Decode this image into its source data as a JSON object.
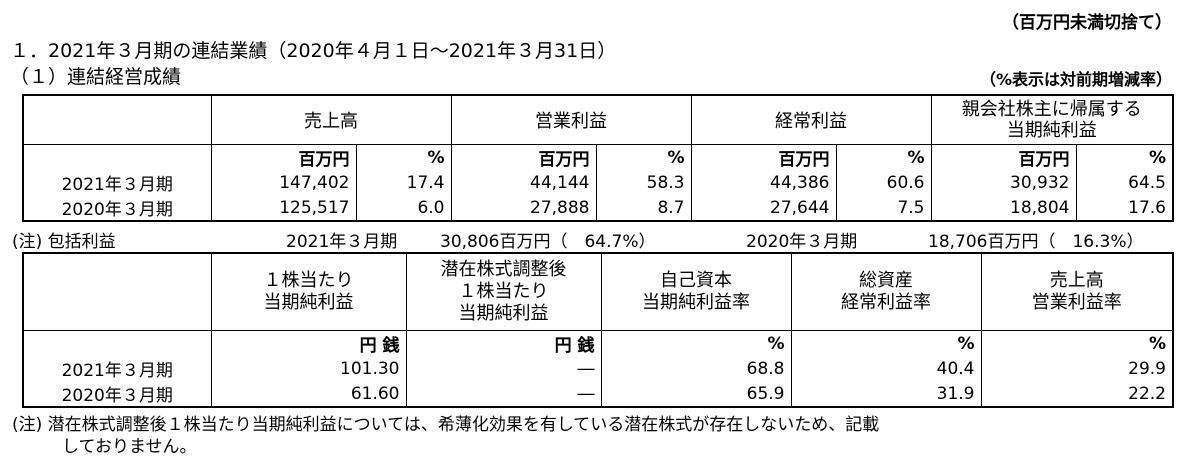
{
  "unit_note": "（百万円未満切捨て）",
  "heading": "１．2021年３月期の連結業績（2020年４月１日～2021年３月31日）",
  "subheading": "（１）連結経営成績",
  "pct_note": "（%表示は対前期増減率）",
  "table1": {
    "headers": [
      "売上高",
      "営業利益",
      "経常利益",
      "親会社株主に帰属する",
      "当期純利益"
    ],
    "unit_million": "百万円",
    "unit_pct": "%",
    "rows": [
      {
        "label": "2021年３月期",
        "values": [
          "147,402",
          "17.4",
          "44,144",
          "58.3",
          "44,386",
          "60.6",
          "30,932",
          "64.5"
        ]
      },
      {
        "label": "2020年３月期",
        "values": [
          "125,517",
          "6.0",
          "27,888",
          "8.7",
          "27,644",
          "7.5",
          "18,804",
          "17.6"
        ]
      }
    ]
  },
  "comprehensive": {
    "label": "(注) 包括利益",
    "fy2021": "2021年３月期",
    "fy2021_value": "30,806百万円（　64.7%）",
    "fy2020": "2020年３月期",
    "fy2020_value": "18,706百万円（　16.3%）"
  },
  "table2": {
    "headers": [
      [
        "１株当たり",
        "当期純利益"
      ],
      [
        "潜在株式調整後",
        "１株当たり",
        "当期純利益"
      ],
      [
        "自己資本",
        "当期純利益率"
      ],
      [
        "総資産",
        "経常利益率"
      ],
      [
        "売上高",
        "営業利益率"
      ]
    ],
    "unit_yen": "円 銭",
    "unit_pct": "%",
    "rows": [
      {
        "label": "2021年３月期",
        "values": [
          "101.30",
          "―",
          "68.8",
          "40.4",
          "29.9"
        ]
      },
      {
        "label": "2020年３月期",
        "values": [
          "61.60",
          "―",
          "65.9",
          "31.9",
          "22.2"
        ]
      }
    ]
  },
  "footnote": {
    "line1": "(注) 潜在株式調整後１株当たり当期純利益については、希薄化効果を有している潜在株式が存在しないため、記載",
    "line2": "しておりません。"
  }
}
